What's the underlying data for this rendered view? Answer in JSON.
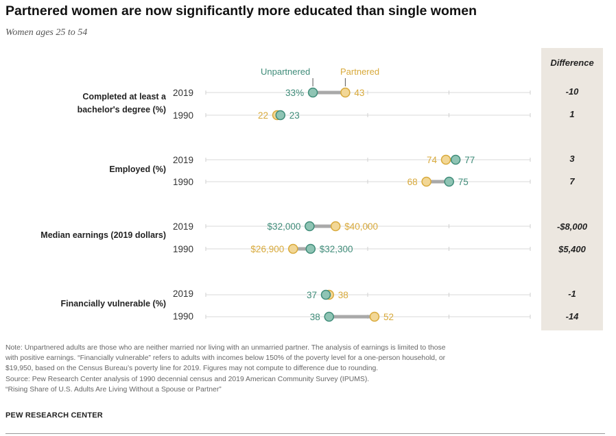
{
  "title": "Partnered women are now significantly more educated than single women",
  "subtitle": "Women ages 25 to 54",
  "legend": {
    "unpartnered": "Unpartnered",
    "partnered": "Partnered"
  },
  "difference_header": "Difference",
  "colors": {
    "unpartnered": "#3e8b78",
    "partnered": "#d8a93a",
    "unpartnered_fill": "#8fc4b4",
    "partnered_fill": "#f2d796",
    "connector": "#a9a9a9",
    "difference_bg": "#ece7e0"
  },
  "chart_data": {
    "type": "dumbbell",
    "x_scale": "hidden",
    "groups": [
      {
        "label_lines": [
          "Completed at least a",
          "bachelor's degree (%)"
        ],
        "rows": [
          {
            "year": "2019",
            "unpartnered": 33,
            "partnered": 43,
            "unpartnered_label": "33%",
            "partnered_label": "43",
            "difference": "-10"
          },
          {
            "year": "1990",
            "unpartnered": 23,
            "partnered": 22,
            "unpartnered_label": "23",
            "partnered_label": "22",
            "difference": "1"
          }
        ]
      },
      {
        "label_lines": [
          "Employed (%)"
        ],
        "rows": [
          {
            "year": "2019",
            "unpartnered": 77,
            "partnered": 74,
            "unpartnered_label": "77",
            "partnered_label": "74",
            "difference": "3"
          },
          {
            "year": "1990",
            "unpartnered": 75,
            "partnered": 68,
            "unpartnered_label": "75",
            "partnered_label": "68",
            "difference": "7"
          }
        ]
      },
      {
        "label_lines": [
          "Median earnings (2019 dollars)"
        ],
        "rows": [
          {
            "year": "2019",
            "unpartnered": 32000,
            "partnered": 40000,
            "unpartnered_label": "$32,000",
            "partnered_label": "$40,000",
            "difference": "-$8,000"
          },
          {
            "year": "1990",
            "unpartnered": 32300,
            "partnered": 26900,
            "unpartnered_label": "$32,300",
            "partnered_label": "$26,900",
            "difference": "$5,400"
          }
        ]
      },
      {
        "label_lines": [
          "Financially vulnerable (%)"
        ],
        "rows": [
          {
            "year": "2019",
            "unpartnered": 37,
            "partnered": 38,
            "unpartnered_label": "37",
            "partnered_label": "38",
            "difference": "-1"
          },
          {
            "year": "1990",
            "unpartnered": 38,
            "partnered": 52,
            "unpartnered_label": "38",
            "partnered_label": "52",
            "difference": "-14"
          }
        ]
      }
    ]
  },
  "notes": [
    "Note: Unpartnered adults are those who are neither married nor living with an unmarried partner. The analysis of earnings is limited to those",
    "with positive earnings. “Financially vulnerable” refers to adults with incomes below 150% of the poverty level for a one-person household, or",
    "$19,950, based on the Census Bureau’s poverty line for 2019. Figures may not compute to difference due to rounding.",
    "Source: Pew Research Center analysis of 1990 decennial census and 2019 American Community Survey (IPUMS).",
    "“Rising Share of U.S. Adults Are Living Without a Spouse or Partner”"
  ],
  "brand": "PEW RESEARCH CENTER"
}
